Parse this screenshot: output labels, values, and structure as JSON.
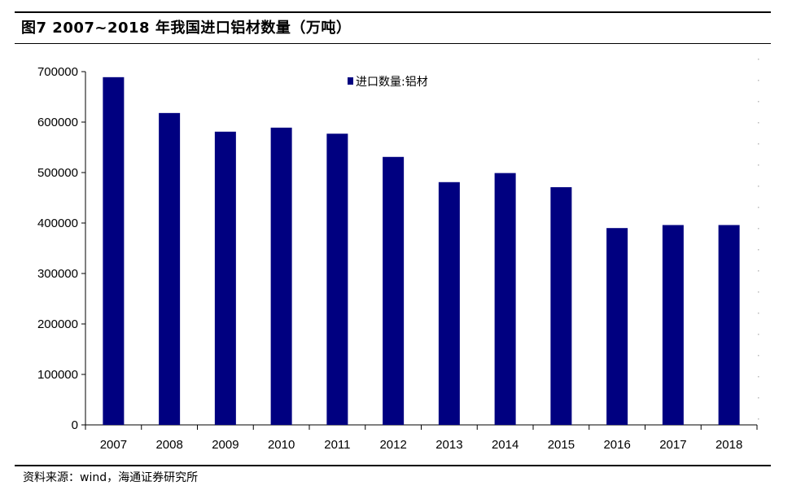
{
  "figure": {
    "title": "图7  2007~2018 年我国进口铝材数量（万吨）",
    "source": "资料来源：wind，海通证券研究所"
  },
  "chart_data": {
    "type": "bar",
    "title": "图7  2007~2018 年我国进口铝材数量（万吨）",
    "xlabel": "",
    "ylabel": "",
    "categories": [
      "2007",
      "2008",
      "2009",
      "2010",
      "2011",
      "2012",
      "2013",
      "2014",
      "2015",
      "2016",
      "2017",
      "2018"
    ],
    "series": [
      {
        "name": "进口数量:铝材",
        "color": "#000080",
        "values": [
          689000,
          618000,
          581000,
          589000,
          577000,
          531000,
          481000,
          499000,
          471000,
          390000,
          396000,
          396000
        ]
      }
    ],
    "ylim": [
      0,
      700000
    ],
    "yticks": [
      "0",
      "100000",
      "200000",
      "300000",
      "400000",
      "500000",
      "600000",
      "700000"
    ],
    "grid": false,
    "legend_position": "top-center"
  }
}
